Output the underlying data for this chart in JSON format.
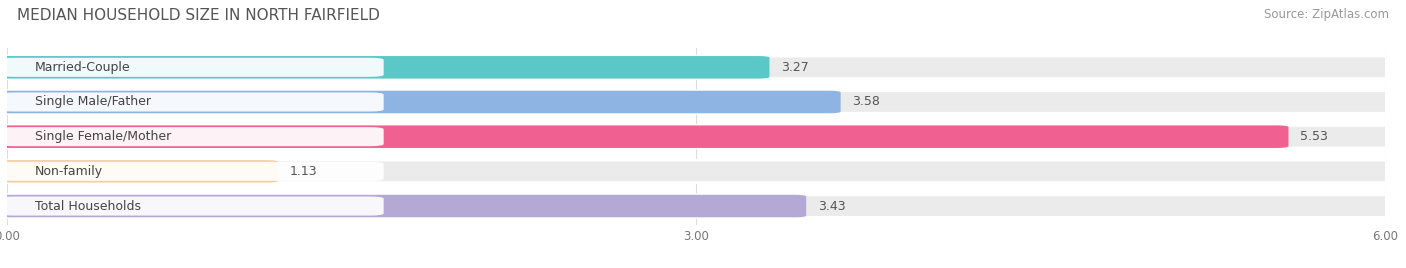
{
  "title": "MEDIAN HOUSEHOLD SIZE IN NORTH FAIRFIELD",
  "source": "Source: ZipAtlas.com",
  "categories": [
    "Married-Couple",
    "Single Male/Father",
    "Single Female/Mother",
    "Non-family",
    "Total Households"
  ],
  "values": [
    3.27,
    3.58,
    5.53,
    1.13,
    3.43
  ],
  "bar_colors": [
    "#5BC8C8",
    "#8EB4E3",
    "#F06090",
    "#F5CFA0",
    "#B4A8D4"
  ],
  "xlim": [
    0,
    6.0
  ],
  "xticks": [
    0.0,
    3.0,
    6.0
  ],
  "xtick_labels": [
    "0.00",
    "3.00",
    "6.00"
  ],
  "title_fontsize": 11,
  "source_fontsize": 8.5,
  "label_fontsize": 9,
  "value_fontsize": 9,
  "background_color": "#FFFFFF",
  "bar_bg_color": "#EBEBEB"
}
